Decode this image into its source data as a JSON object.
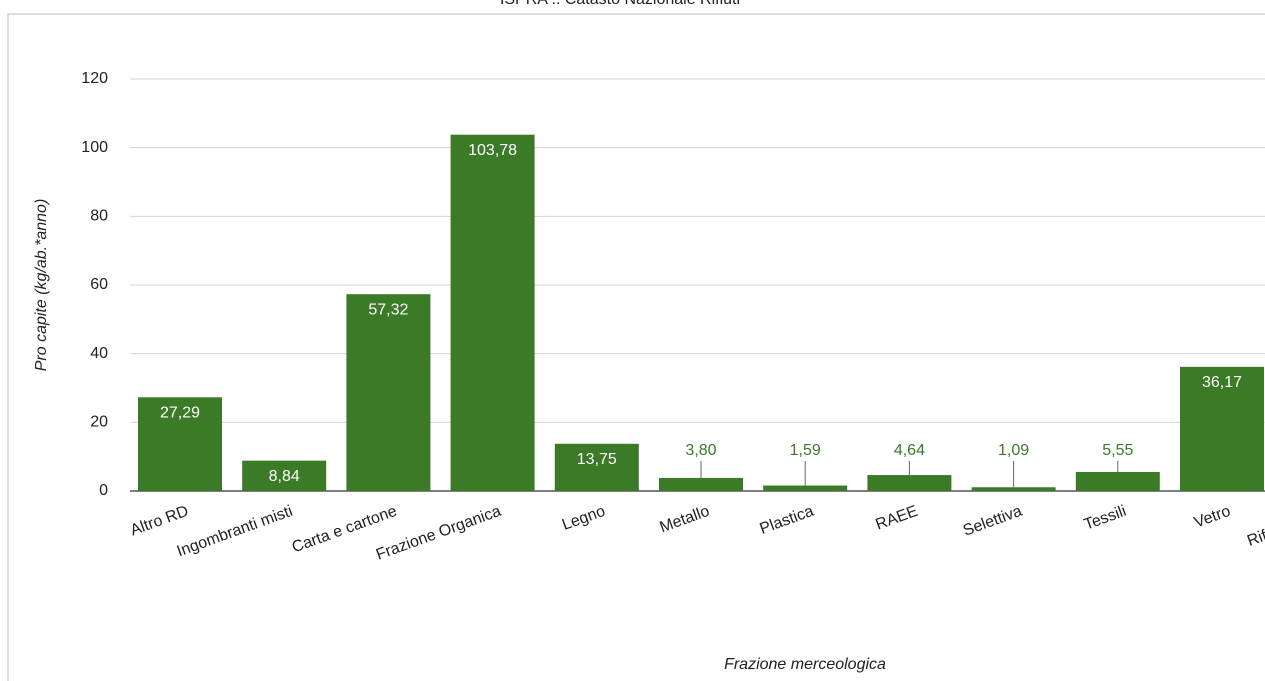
{
  "chart_data": {
    "type": "bar",
    "title": "ISPRA :: Catasto Nazionale Rifiuti",
    "x_label": "Frazione merceologica",
    "y_label": "Pro capite (kg/ab.*anno)",
    "categories": [
      "Altro RD",
      "Ingombranti misti",
      "Carta e cartone",
      "Frazione Organica",
      "Legno",
      "Metallo",
      "Plastica",
      "RAEE",
      "Selettiva",
      "Tessili",
      "Vetro",
      "Rifiuti Pulizia"
    ],
    "values": [
      27.29,
      8.84,
      57.32,
      103.78,
      13.75,
      3.8,
      1.59,
      4.64,
      1.09,
      5.55,
      36.17,
      null
    ],
    "value_labels": [
      "27,29",
      "8,84",
      "57,32",
      "103,78",
      "13,75",
      "3,80",
      "1,59",
      "4,64",
      "1,09",
      "5,55",
      "36,17",
      null
    ],
    "color": "#3b7a26",
    "ylim": [
      0,
      120
    ],
    "yticks": [
      0,
      20,
      40,
      60,
      80,
      100,
      120
    ],
    "grid": true
  }
}
